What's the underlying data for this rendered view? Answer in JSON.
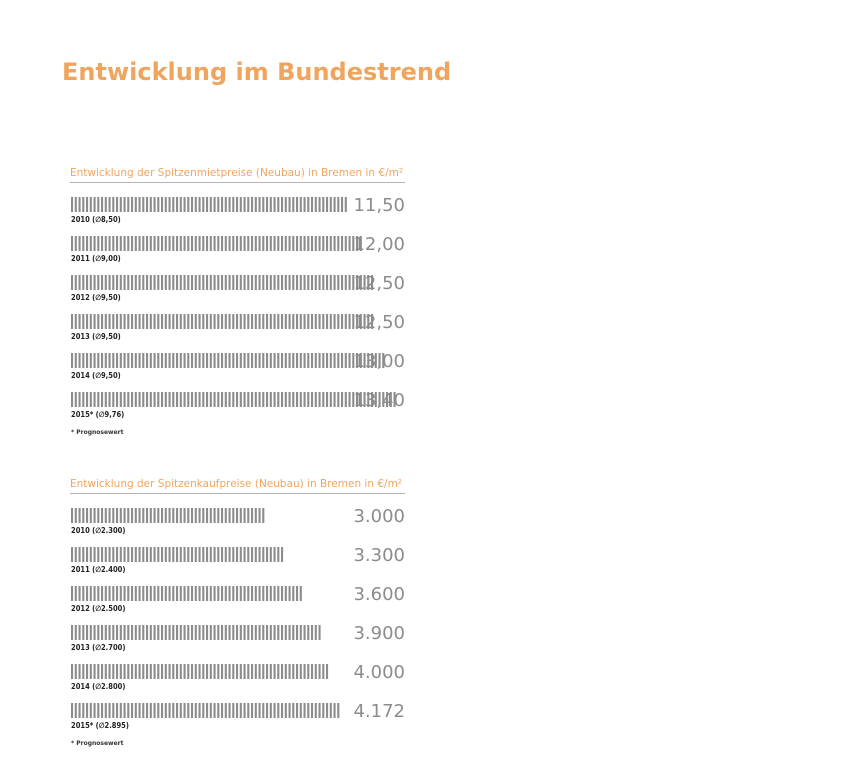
{
  "page": {
    "title": "Entwicklung im Bundestrend"
  },
  "colors": {
    "accent": "#f0a55e",
    "bar": "#8c8c8c",
    "value": "#8c8c8c",
    "rule": "#b4b4b4"
  },
  "chart_data": [
    {
      "type": "bar",
      "orientation": "horizontal",
      "title": "Entwicklung der Spitzenmietpreise (Neubau) in Bremen in €/m²",
      "categories": [
        "2010 (∅8,50)",
        "2011 (∅9,00)",
        "2012 (∅9,50)",
        "2013 (∅9,50)",
        "2014 (∅9,50)",
        "2015* (∅9,76)"
      ],
      "values": [
        11.5,
        12.0,
        12.5,
        12.5,
        13.0,
        13.4
      ],
      "value_labels": [
        "11,50",
        "12,00",
        "12,50",
        "12,50",
        "13,00",
        "13,40"
      ],
      "footnote": "* Prognosewert"
    },
    {
      "type": "bar",
      "orientation": "horizontal",
      "title": "Entwicklung der Spitzenkaufpreise (Neubau) in Bremen in €/m²",
      "categories": [
        "2010 (∅2.300)",
        "2011 (∅2.400)",
        "2012 (∅2.500)",
        "2013 (∅2.700)",
        "2014 (∅2.800)",
        "2015* (∅2.895)"
      ],
      "values": [
        3000,
        3300,
        3600,
        3900,
        4000,
        4172
      ],
      "value_labels": [
        "3.000",
        "3.300",
        "3.600",
        "3.900",
        "4.000",
        "4.172"
      ],
      "footnote": "* Prognosewert"
    }
  ]
}
